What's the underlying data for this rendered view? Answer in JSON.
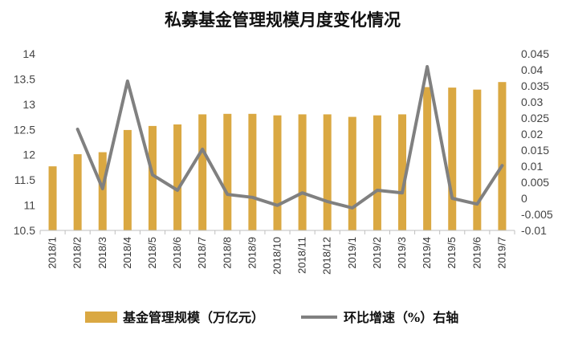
{
  "chart_data": {
    "type": "bar",
    "title": "私募基金管理规模月度变化情况",
    "categories": [
      "2018/1",
      "2018/2",
      "2018/3",
      "2018/4",
      "2018/5",
      "2018/6",
      "2018/7",
      "2018/8",
      "2018/9",
      "2018/10",
      "2018/11",
      "2018/12",
      "2019/1",
      "2019/2",
      "2019/3",
      "2019/4",
      "2019/5",
      "2019/6",
      "2019/7"
    ],
    "series": [
      {
        "name": "基金管理规模（万亿元）",
        "type": "bar",
        "axis": "left",
        "color": "#DAA842",
        "values": [
          11.77,
          12.01,
          12.05,
          12.49,
          12.57,
          12.6,
          12.8,
          12.81,
          12.81,
          12.78,
          12.8,
          12.8,
          12.75,
          12.78,
          12.8,
          13.34,
          13.33,
          13.29,
          13.44
        ]
      },
      {
        "name": "环比增速（%）右轴",
        "type": "line",
        "axis": "right",
        "color": "#808080",
        "values": [
          null,
          0.0215,
          0.003,
          0.0365,
          0.0073,
          0.0025,
          0.0153,
          0.0012,
          0.0003,
          -0.0022,
          0.0017,
          -0.001,
          -0.003,
          0.0025,
          0.0017,
          0.041,
          0.0,
          -0.0018,
          0.0102
        ]
      }
    ],
    "y_left": {
      "min": 10.5,
      "max": 14,
      "ticks": [
        "10.5",
        "11",
        "11.5",
        "12",
        "12.5",
        "13",
        "13.5",
        "14"
      ]
    },
    "y_right": {
      "min": -0.01,
      "max": 0.045,
      "ticks": [
        "-0.01",
        "-0.005",
        "0",
        "0.005",
        "0.01",
        "0.015",
        "0.02",
        "0.025",
        "0.03",
        "0.035",
        "0.04",
        "0.045"
      ]
    },
    "grid": false,
    "legend_position": "bottom"
  }
}
